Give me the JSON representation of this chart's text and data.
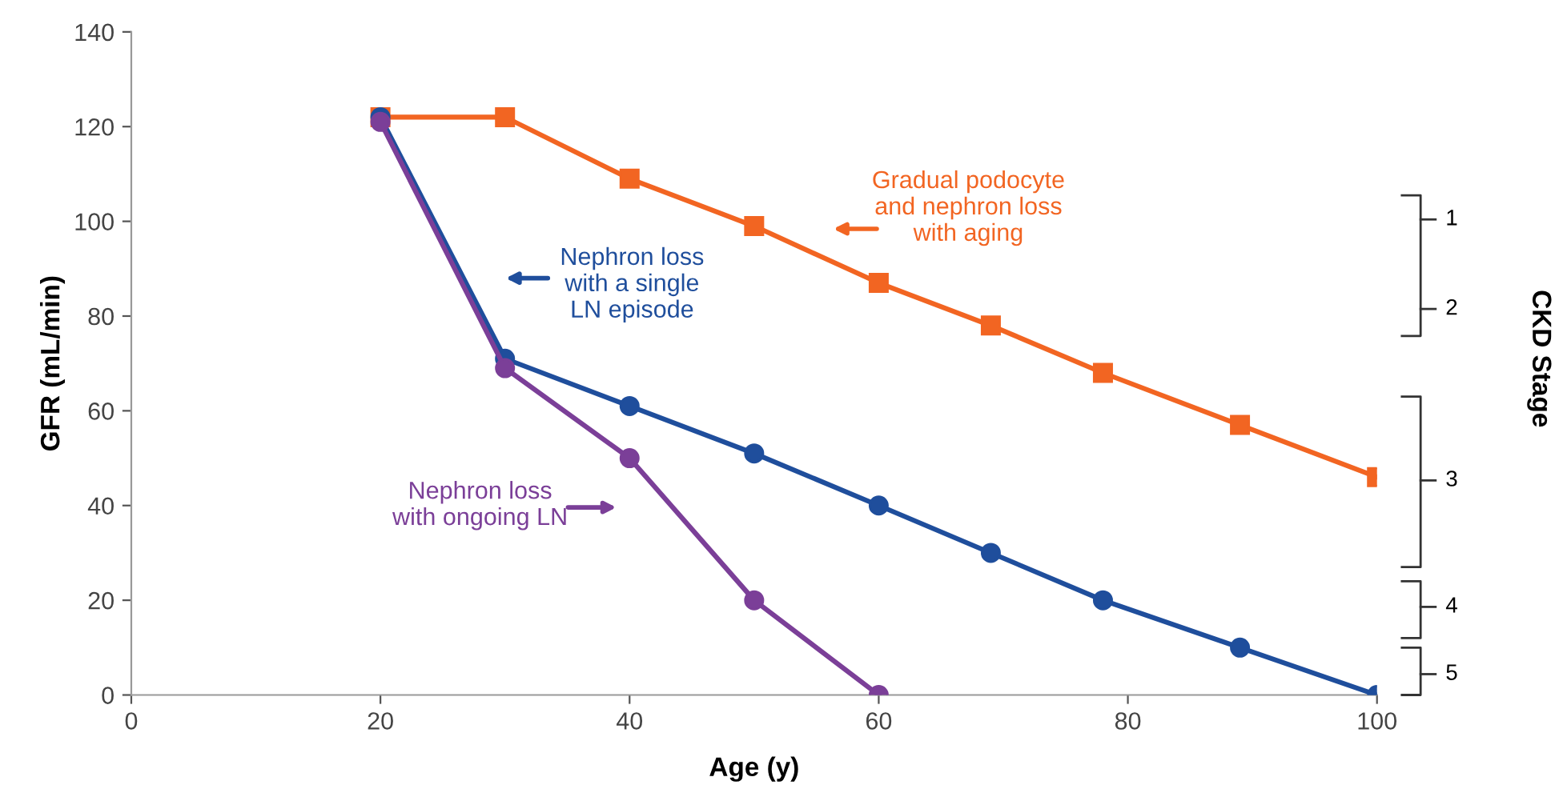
{
  "chart_data": {
    "type": "line",
    "xlabel": "Age (y)",
    "ylabel": "GFR (mL/min)",
    "annotations": [
      "CKD Stage",
      "1",
      "2",
      "3",
      "4",
      "5"
    ],
    "xlim": [
      0,
      100
    ],
    "xticks": [
      0,
      20,
      40,
      60,
      80,
      100
    ],
    "ylim": [
      0,
      140
    ],
    "yticks": [
      0,
      20,
      40,
      60,
      80,
      100,
      120,
      140
    ],
    "grid": false,
    "line_style": "solid",
    "series": [
      {
        "name": "Gradual podocyte\nand nephron loss\nwith aging",
        "color": "#f26522",
        "marker": "square",
        "x": [
          20,
          30,
          40,
          50,
          60,
          69,
          78,
          89,
          100
        ],
        "values": [
          122,
          122,
          109,
          99,
          87,
          78,
          68,
          57,
          46
        ]
      },
      {
        "name": "Nephron loss\nwith a single\nLN episode",
        "color": "#1f4e9c",
        "marker": "circle",
        "x": [
          20,
          30,
          40,
          50,
          60,
          69,
          78,
          89,
          100
        ],
        "values": [
          122,
          71,
          61,
          51,
          40,
          30,
          20,
          10,
          0
        ]
      },
      {
        "name": "Nephron loss\nwith ongoing LN",
        "color": "#7b3f98",
        "marker": "circle",
        "x": [
          20,
          30,
          40,
          50,
          60
        ],
        "values": [
          121,
          69,
          50,
          20,
          0
        ]
      }
    ]
  }
}
